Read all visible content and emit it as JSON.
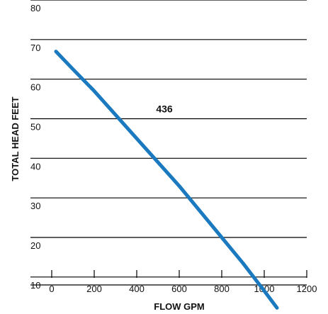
{
  "chart_data": {
    "type": "line",
    "title": "",
    "xlabel": "FLOW GPM",
    "ylabel": "TOTAL HEAD FEET",
    "xlim": [
      -100,
      1200
    ],
    "ylim": [
      8,
      80
    ],
    "grid": "horizontal",
    "line_color": "#1a79bf",
    "x_ticks": [
      {
        "value": 0,
        "label": "0"
      },
      {
        "value": 200,
        "label": "200"
      },
      {
        "value": 400,
        "label": "400"
      },
      {
        "value": 600,
        "label": "600"
      },
      {
        "value": 800,
        "label": "800"
      },
      {
        "value": 1000,
        "label": "1000"
      },
      {
        "value": 1200,
        "label": "1200"
      }
    ],
    "y_ticks": [
      {
        "value": 10,
        "label": "10"
      },
      {
        "value": 20,
        "label": "20"
      },
      {
        "value": 30,
        "label": "30"
      },
      {
        "value": 40,
        "label": "40"
      },
      {
        "value": 50,
        "label": "50"
      },
      {
        "value": 60,
        "label": "60"
      },
      {
        "value": 70,
        "label": "70"
      },
      {
        "value": 80,
        "label": "80"
      }
    ],
    "series": [
      {
        "label": "436",
        "label_at": {
          "x": 530,
          "y": 52.5
        },
        "points": [
          {
            "x": 20,
            "y": 67.0
          },
          {
            "x": 100,
            "y": 62.5
          },
          {
            "x": 200,
            "y": 57.0
          },
          {
            "x": 300,
            "y": 51.0
          },
          {
            "x": 400,
            "y": 45.0
          },
          {
            "x": 500,
            "y": 39.0
          },
          {
            "x": 600,
            "y": 33.0
          },
          {
            "x": 700,
            "y": 26.5
          },
          {
            "x": 800,
            "y": 20.0
          },
          {
            "x": 900,
            "y": 13.5
          },
          {
            "x": 1000,
            "y": 6.5
          },
          {
            "x": 1060,
            "y": 2.2
          }
        ]
      }
    ]
  }
}
